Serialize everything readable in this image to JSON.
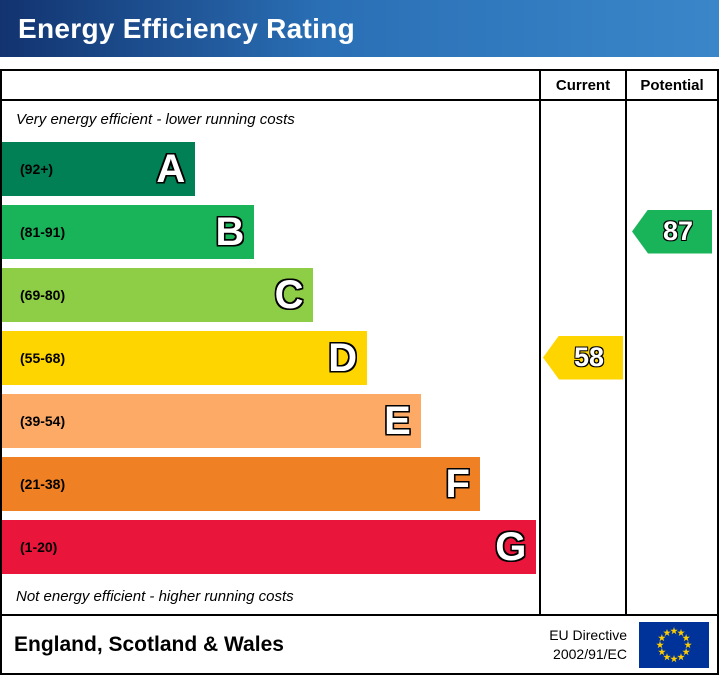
{
  "header": {
    "title": "Energy Efficiency Rating"
  },
  "chart": {
    "columns": [
      "Current",
      "Potential"
    ],
    "top_note": "Very energy efficient - lower running costs",
    "bottom_note": "Not energy efficient - higher running costs"
  },
  "chart_data": {
    "type": "bar",
    "title": "Energy Efficiency Rating",
    "bands": [
      {
        "letter": "A",
        "range": "(92+)",
        "color": "#008054",
        "width_pct": 36
      },
      {
        "letter": "B",
        "range": "(81-91)",
        "color": "#19b459",
        "width_pct": 47
      },
      {
        "letter": "C",
        "range": "(69-80)",
        "color": "#8dce46",
        "width_pct": 58
      },
      {
        "letter": "D",
        "range": "(55-68)",
        "color": "#ffd500",
        "width_pct": 68
      },
      {
        "letter": "E",
        "range": "(39-54)",
        "color": "#fcaa65",
        "width_pct": 78
      },
      {
        "letter": "F",
        "range": "(21-38)",
        "color": "#ef8023",
        "width_pct": 89
      },
      {
        "letter": "G",
        "range": "(1-20)",
        "color": "#e9153b",
        "width_pct": 99.5
      }
    ],
    "current": {
      "value": 58,
      "band": "D",
      "color": "#ffd500"
    },
    "potential": {
      "value": 87,
      "band": "B",
      "color": "#19b459"
    }
  },
  "footer": {
    "region": "England, Scotland & Wales",
    "directive_line1": "EU Directive",
    "directive_line2": "2002/91/EC",
    "flag": {
      "name": "eu-flag",
      "background": "#003399",
      "star_color": "#ffcc00"
    }
  }
}
